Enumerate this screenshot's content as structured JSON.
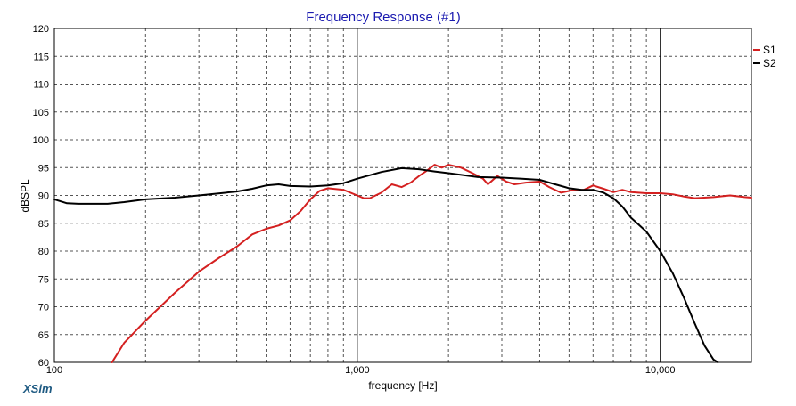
{
  "app": {
    "brand": "XSim"
  },
  "chart_data": {
    "type": "line",
    "title": "Frequency Response (#1)",
    "xlabel": "frequency [Hz]",
    "ylabel": "dBSPL",
    "xscale": "log",
    "xlim": [
      100,
      20000
    ],
    "ylim": [
      60,
      120
    ],
    "grid": true,
    "legend_position": "top-right",
    "x_tick_labels": [
      {
        "value": 100,
        "label": "100"
      },
      {
        "value": 1000,
        "label": "1,000"
      },
      {
        "value": 10000,
        "label": "10,000"
      }
    ],
    "y_ticks": [
      60,
      65,
      70,
      75,
      80,
      85,
      90,
      95,
      100,
      105,
      110,
      115,
      120
    ],
    "series": [
      {
        "name": "S1",
        "color": "#d42020",
        "points": [
          [
            155,
            60
          ],
          [
            170,
            63.5
          ],
          [
            200,
            67.5
          ],
          [
            250,
            72.5
          ],
          [
            300,
            76.3
          ],
          [
            350,
            78.8
          ],
          [
            400,
            80.8
          ],
          [
            450,
            83
          ],
          [
            500,
            84
          ],
          [
            550,
            84.6
          ],
          [
            600,
            85.5
          ],
          [
            650,
            87.2
          ],
          [
            700,
            89.3
          ],
          [
            750,
            90.8
          ],
          [
            800,
            91.3
          ],
          [
            900,
            91
          ],
          [
            1000,
            90
          ],
          [
            1050,
            89.5
          ],
          [
            1100,
            89.5
          ],
          [
            1200,
            90.5
          ],
          [
            1300,
            92
          ],
          [
            1400,
            91.5
          ],
          [
            1500,
            92.3
          ],
          [
            1600,
            93.5
          ],
          [
            1700,
            94.5
          ],
          [
            1800,
            95.5
          ],
          [
            1900,
            95
          ],
          [
            2000,
            95.5
          ],
          [
            2200,
            95
          ],
          [
            2400,
            94
          ],
          [
            2600,
            93
          ],
          [
            2700,
            92
          ],
          [
            2900,
            93.5
          ],
          [
            3100,
            92.5
          ],
          [
            3300,
            92
          ],
          [
            3600,
            92.3
          ],
          [
            4000,
            92.5
          ],
          [
            4300,
            91.5
          ],
          [
            4700,
            90.5
          ],
          [
            5200,
            91
          ],
          [
            5600,
            91
          ],
          [
            6000,
            91.8
          ],
          [
            6500,
            91.2
          ],
          [
            7000,
            90.6
          ],
          [
            7500,
            91
          ],
          [
            8000,
            90.6
          ],
          [
            9000,
            90.4
          ],
          [
            10000,
            90.4
          ],
          [
            11000,
            90.2
          ],
          [
            12000,
            89.8
          ],
          [
            13000,
            89.5
          ],
          [
            15000,
            89.7
          ],
          [
            17000,
            90
          ],
          [
            19000,
            89.7
          ],
          [
            20000,
            89.6
          ]
        ]
      },
      {
        "name": "S2",
        "color": "#000000",
        "points": [
          [
            100,
            89.3
          ],
          [
            110,
            88.6
          ],
          [
            120,
            88.5
          ],
          [
            150,
            88.5
          ],
          [
            170,
            88.8
          ],
          [
            200,
            89.3
          ],
          [
            250,
            89.6
          ],
          [
            300,
            90
          ],
          [
            400,
            90.7
          ],
          [
            450,
            91.2
          ],
          [
            500,
            91.8
          ],
          [
            550,
            92
          ],
          [
            600,
            91.7
          ],
          [
            700,
            91.6
          ],
          [
            800,
            91.8
          ],
          [
            900,
            92.2
          ],
          [
            1000,
            93
          ],
          [
            1200,
            94.2
          ],
          [
            1400,
            94.9
          ],
          [
            1600,
            94.7
          ],
          [
            1800,
            94.3
          ],
          [
            2000,
            94
          ],
          [
            2500,
            93.3
          ],
          [
            3000,
            93.2
          ],
          [
            3500,
            93
          ],
          [
            4000,
            92.8
          ],
          [
            4500,
            92
          ],
          [
            5000,
            91.3
          ],
          [
            5500,
            91
          ],
          [
            6000,
            91
          ],
          [
            6500,
            90.5
          ],
          [
            7000,
            89.5
          ],
          [
            7500,
            88
          ],
          [
            8000,
            86
          ],
          [
            9000,
            83.5
          ],
          [
            10000,
            80
          ],
          [
            11000,
            76
          ],
          [
            12000,
            71.5
          ],
          [
            13000,
            67
          ],
          [
            14000,
            63
          ],
          [
            15000,
            60.5
          ],
          [
            15500,
            60
          ]
        ]
      }
    ]
  }
}
